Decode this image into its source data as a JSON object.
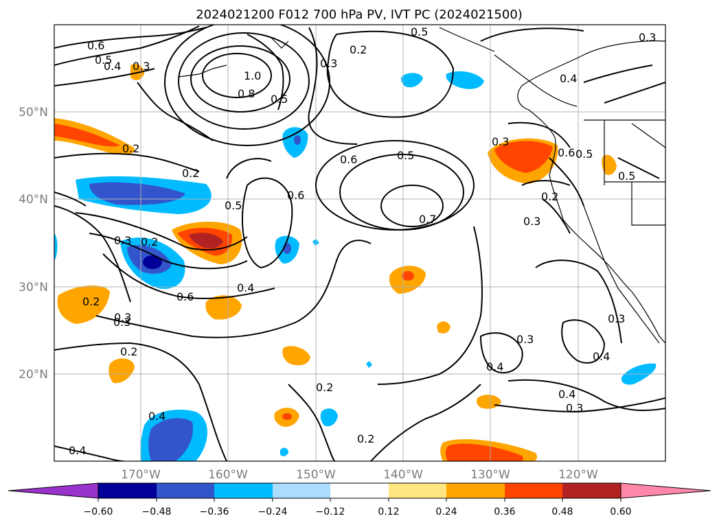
{
  "title": "2024021200 F012 700 hPa PV, IVT PC (2024021500)",
  "map": {
    "lat_labels": [
      "50°N",
      "40°N",
      "30°N",
      "20°N"
    ],
    "lon_labels": [
      "170°W",
      "160°W",
      "150°W",
      "140°W",
      "130°W",
      "120°W"
    ],
    "contour_labels": [
      "0.6",
      "0.5",
      "0.4",
      "0.3",
      "0.2",
      "1.0",
      "0.8",
      "0.5",
      "0.3",
      "0.2",
      "0.5",
      "0.3",
      "0.4",
      "0.6",
      "0.5",
      "0.6",
      "0.5",
      "0.7",
      "0.5",
      "0.6",
      "0.2",
      "0.2",
      "0.3",
      "0.2",
      "0.6",
      "0.4",
      "0.3",
      "0.2",
      "0.3",
      "0.4",
      "0.4",
      "0.2",
      "0.2",
      "0.4",
      "0.3",
      "0.4",
      "0.3",
      "0.4",
      "0.3",
      "0.2",
      "0.3",
      "0.5",
      "0.3"
    ]
  },
  "colorbar": {
    "ticks": [
      "−0.60",
      "−0.48",
      "−0.36",
      "−0.24",
      "−0.12",
      "0.12",
      "0.24",
      "0.36",
      "0.48",
      "0.60"
    ],
    "colors": [
      "#9933cc",
      "#000099",
      "#3355cc",
      "#00bbff",
      "#aaddff",
      "#ffffff",
      "#ffe680",
      "#ffa500",
      "#ff4500",
      "#b22222",
      "#ff88aa"
    ]
  }
}
